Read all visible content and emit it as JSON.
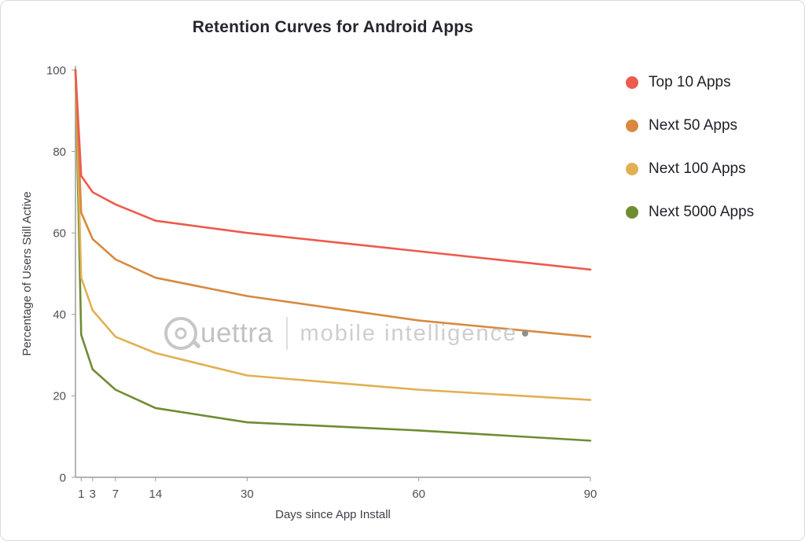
{
  "title": "Retention Curves for Android Apps",
  "watermark": {
    "brand": "Quettra",
    "brand_suffix": "uettra",
    "tagline": "mobile intelligence",
    "period": "."
  },
  "chart_data": {
    "type": "line",
    "title": "Retention Curves for Android Apps",
    "xlabel": "Days since App Install",
    "ylabel": "Percentage of Users Still Active",
    "xlim": [
      0,
      90
    ],
    "ylim": [
      0,
      100
    ],
    "x_ticks": [
      1,
      3,
      7,
      14,
      30,
      60,
      90
    ],
    "y_ticks": [
      0,
      20,
      40,
      60,
      80,
      100
    ],
    "grid": false,
    "legend_position": "right",
    "x": [
      0,
      1,
      3,
      7,
      14,
      30,
      60,
      90
    ],
    "series": [
      {
        "name": "Top 10 Apps",
        "color": "#ed5a4e",
        "values": [
          100,
          74,
          70,
          67,
          63,
          60,
          55.5,
          51
        ]
      },
      {
        "name": "Next 50 Apps",
        "color": "#d8893f",
        "values": [
          100,
          65,
          58.5,
          53.5,
          49,
          44.5,
          38.5,
          34.5
        ]
      },
      {
        "name": "Next 100 Apps",
        "color": "#e0b052",
        "values": [
          100,
          49,
          41,
          34.5,
          30.5,
          25,
          21.5,
          19
        ]
      },
      {
        "name": "Next 5000 Apps",
        "color": "#6f8c33",
        "values": [
          100,
          35,
          26.5,
          21.5,
          17,
          13.5,
          11.5,
          9
        ]
      }
    ],
    "axis_color": "#9b9b9b",
    "tick_text_color": "#4f4f58"
  }
}
